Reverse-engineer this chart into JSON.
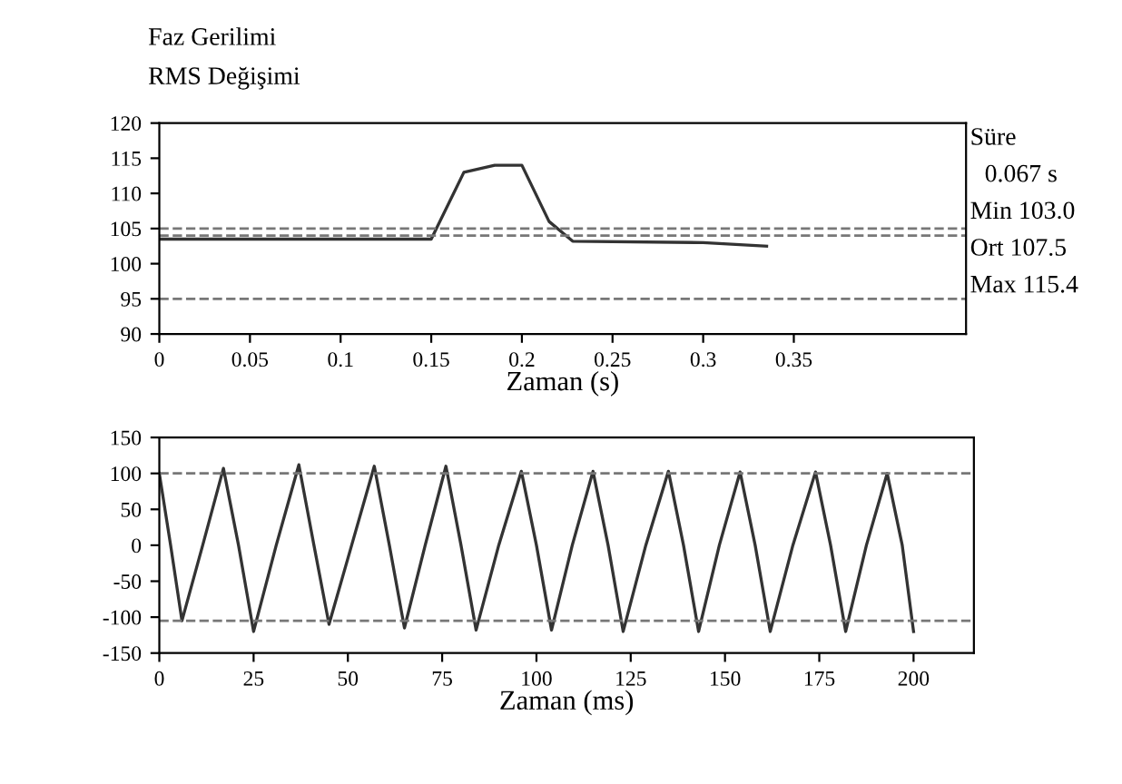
{
  "chart_data": [
    {
      "type": "line",
      "title": "Faz Gerilimi",
      "subtitle": "RMS Değişimi",
      "xlabel": "Zaman (s)",
      "x": [
        0,
        0.15,
        0.168,
        0.185,
        0.2,
        0.215,
        0.228,
        0.3,
        0.335
      ],
      "series": [
        {
          "color": "#333333",
          "values": [
            103.5,
            103.5,
            113,
            114,
            114,
            106,
            103.2,
            103,
            102.5
          ]
        }
      ],
      "xlim": [
        0,
        0.445
      ],
      "ylim": [
        90,
        120
      ],
      "xticks": [
        0,
        0.05,
        0.1,
        0.15,
        0.2,
        0.25,
        0.3,
        0.35
      ],
      "yticks": [
        90,
        95,
        100,
        105,
        110,
        115,
        120
      ],
      "ref_lines": [
        {
          "axis": "y",
          "value": 105,
          "color": "#777777",
          "line_style": "dashed"
        },
        {
          "axis": "y",
          "value": 104,
          "color": "#777777",
          "line_style": "dashed"
        },
        {
          "axis": "y",
          "value": 95,
          "color": "#777777",
          "line_style": "dashed"
        }
      ],
      "annotations": [
        "Süre",
        "0.067 s",
        "Min 103.0",
        "Ort 107.5",
        "Max 115.4"
      ],
      "grid": false,
      "legend": false
    },
    {
      "type": "line",
      "xlabel": "Zaman (ms)",
      "x": [
        0,
        3,
        6,
        11.5,
        17,
        21,
        25,
        31,
        37,
        41,
        45,
        51,
        57,
        61,
        65,
        70.5,
        76,
        80,
        84,
        90,
        96,
        100,
        104,
        109.5,
        115,
        119,
        123,
        129,
        135,
        139,
        143,
        148.5,
        154,
        158,
        162,
        168,
        174,
        178,
        182,
        187.5,
        193,
        197,
        200
      ],
      "series": [
        {
          "color": "#333333",
          "values": [
            100,
            0,
            -105,
            0,
            107,
            0,
            -120,
            0,
            112,
            0,
            -110,
            0,
            110,
            0,
            -115,
            0,
            110,
            0,
            -118,
            0,
            103,
            0,
            -118,
            0,
            103,
            0,
            -120,
            0,
            103,
            0,
            -120,
            0,
            102,
            0,
            -120,
            0,
            102,
            0,
            -120,
            0,
            100,
            0,
            -120
          ]
        }
      ],
      "xlim": [
        0,
        216
      ],
      "ylim": [
        -150,
        150
      ],
      "xticks": [
        0,
        25,
        50,
        75,
        100,
        125,
        150,
        175,
        200
      ],
      "yticks": [
        -150,
        -100,
        -50,
        0,
        50,
        100,
        150
      ],
      "ref_lines": [
        {
          "axis": "y",
          "value": 100,
          "color": "#777777",
          "line_style": "dashed"
        },
        {
          "axis": "y",
          "value": -105,
          "color": "#777777",
          "line_style": "dashed"
        }
      ],
      "grid": false,
      "legend": false
    }
  ]
}
